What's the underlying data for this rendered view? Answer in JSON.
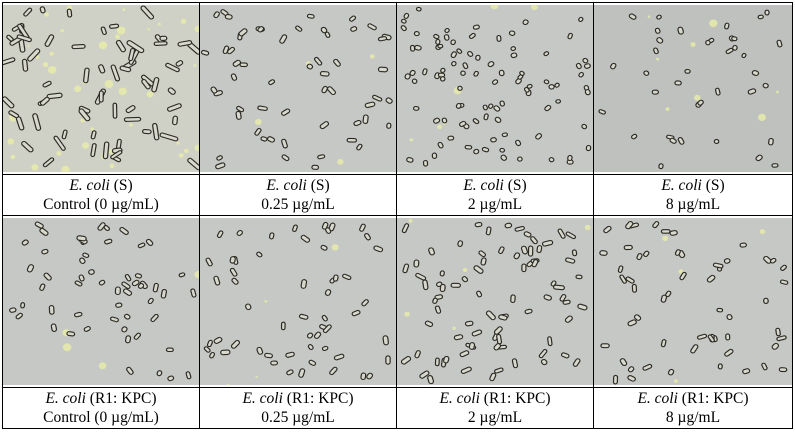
{
  "rows": [
    {
      "panels": [
        {
          "organism": "E. coli",
          "strain": " (S)",
          "condition": "Control (0 µg/mL)",
          "image": "micrograph-elongated-filaments"
        },
        {
          "organism": "E. coli",
          "strain": " (S)",
          "condition": "0.25 µg/mL",
          "image": "micrograph-scattered-rods"
        },
        {
          "organism": "E. coli",
          "strain": " (S)",
          "condition": "2 µg/mL",
          "image": "micrograph-dense-round-cells"
        },
        {
          "organism": "E. coli",
          "strain": " (S)",
          "condition": "8 µg/mL",
          "image": "micrograph-sparse-cells"
        }
      ]
    },
    {
      "panels": [
        {
          "organism": "E. coli",
          "strain": " (R1: KPC)",
          "condition": "Control (0 µg/mL)",
          "image": "micrograph-scattered-rods"
        },
        {
          "organism": "E. coli",
          "strain": " (R1: KPC)",
          "condition": "0.25 µg/mL",
          "image": "micrograph-scattered-rods"
        },
        {
          "organism": "E. coli",
          "strain": " (R1: KPC)",
          "condition": "2 µg/mL",
          "image": "micrograph-dense-rods"
        },
        {
          "organism": "E. coli",
          "strain": " (R1: KPC)",
          "condition": "8 µg/mL",
          "image": "micrograph-scattered-rods"
        }
      ]
    }
  ],
  "colors": {
    "background_gray": "#c6c8c6",
    "cell_outline": "#2b2a24",
    "halo": "#e9eda8",
    "control_bg": "#cfd0c6"
  }
}
